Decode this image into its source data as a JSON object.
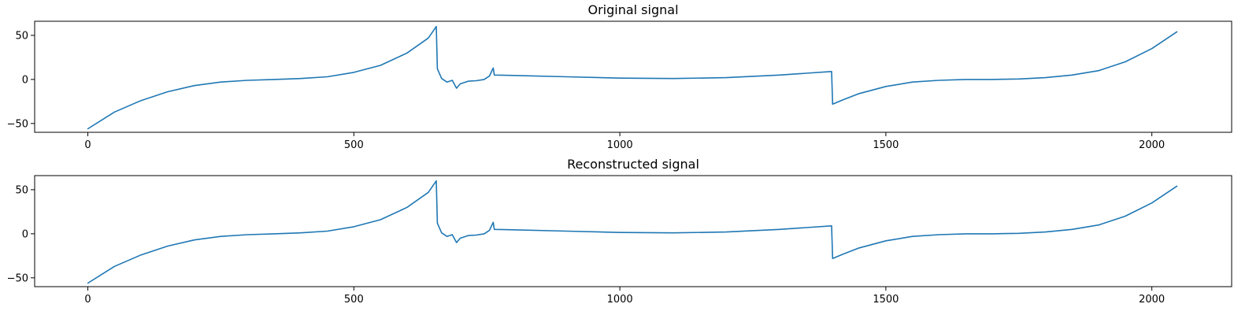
{
  "chart_data": [
    {
      "type": "line",
      "title": "Original signal",
      "xlabel": "",
      "ylabel": "",
      "xlim": [
        -100,
        2150
      ],
      "ylim": [
        -60,
        66
      ],
      "xticks": [
        0,
        500,
        1000,
        1500,
        2000
      ],
      "yticks": [
        -50,
        0,
        50
      ],
      "grid": false,
      "series": [
        {
          "color": "#1f77b4",
          "x": [
            0,
            50,
            100,
            150,
            200,
            250,
            300,
            350,
            400,
            450,
            500,
            550,
            600,
            640,
            655,
            657,
            665,
            675,
            685,
            693,
            700,
            715,
            730,
            745,
            755,
            762,
            764,
            800,
            900,
            1000,
            1100,
            1200,
            1300,
            1350,
            1398,
            1400,
            1420,
            1450,
            1500,
            1550,
            1600,
            1650,
            1700,
            1750,
            1800,
            1850,
            1900,
            1950,
            2000,
            2047
          ],
          "y": [
            -56,
            -37,
            -24,
            -14,
            -7,
            -3,
            -1,
            0,
            1,
            3,
            8,
            16,
            30,
            47,
            60,
            12,
            1,
            -3,
            -1,
            -10,
            -5,
            -2,
            -1.5,
            0,
            4,
            13,
            5,
            4.5,
            3,
            1.5,
            1,
            2,
            5,
            7,
            9,
            -28,
            -23,
            -16,
            -8,
            -3,
            -1,
            0,
            0,
            0.5,
            2,
            5,
            10,
            20,
            35,
            54
          ]
        }
      ]
    },
    {
      "type": "line",
      "title": "Reconstructed signal",
      "xlabel": "",
      "ylabel": "",
      "xlim": [
        -100,
        2150
      ],
      "ylim": [
        -60,
        66
      ],
      "xticks": [
        0,
        500,
        1000,
        1500,
        2000
      ],
      "yticks": [
        -50,
        0,
        50
      ],
      "grid": false,
      "series": [
        {
          "color": "#1f77b4",
          "x": [
            0,
            50,
            100,
            150,
            200,
            250,
            300,
            350,
            400,
            450,
            500,
            550,
            600,
            640,
            655,
            657,
            665,
            675,
            685,
            693,
            700,
            715,
            730,
            745,
            755,
            762,
            764,
            800,
            900,
            1000,
            1100,
            1200,
            1300,
            1350,
            1398,
            1400,
            1420,
            1450,
            1500,
            1550,
            1600,
            1650,
            1700,
            1750,
            1800,
            1850,
            1900,
            1950,
            2000,
            2047
          ],
          "y": [
            -56,
            -37,
            -24,
            -14,
            -7,
            -3,
            -1,
            0,
            1,
            3,
            8,
            16,
            30,
            47,
            60,
            12,
            1,
            -3,
            -1,
            -10,
            -5,
            -2,
            -1.5,
            0,
            4,
            13,
            5,
            4.5,
            3,
            1.5,
            1,
            2,
            5,
            7,
            9,
            -28,
            -23,
            -16,
            -8,
            -3,
            -1,
            0,
            0,
            0.5,
            2,
            5,
            10,
            20,
            35,
            54
          ]
        }
      ]
    }
  ]
}
